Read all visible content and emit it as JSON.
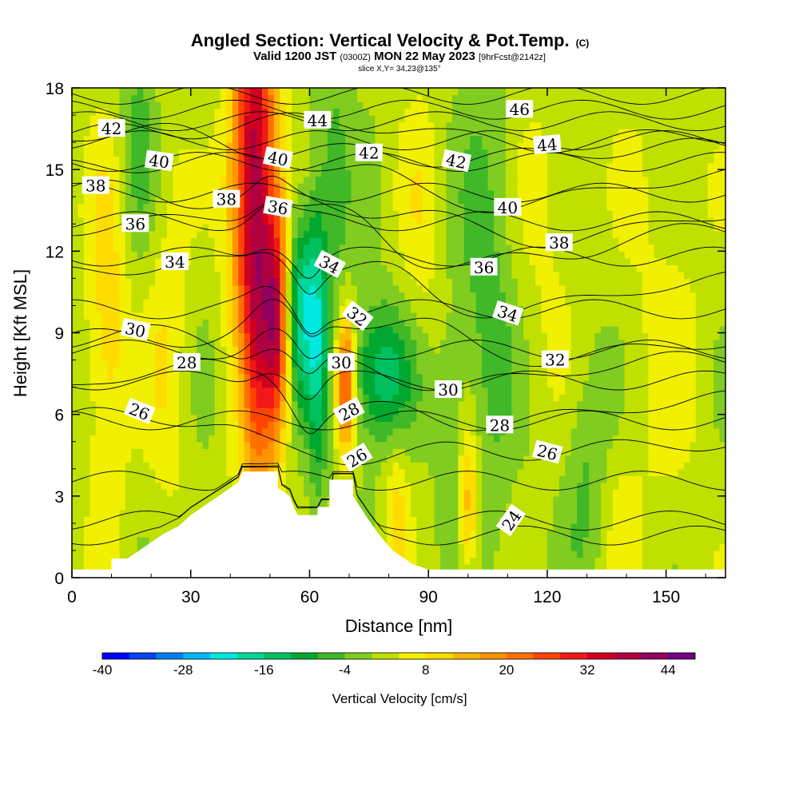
{
  "chart_data": {
    "type": "heatmap",
    "title": "Angled Section: Vertical Velocity & Pot.Temp.",
    "title_mark": "(C)",
    "subtitle_parts": [
      "Valid 1200 JST ",
      "(0300Z)",
      " MON 22 May 2023 ",
      "[9hrFcst@2142z]"
    ],
    "slice_text": "slice X,Y= 34,23@135°",
    "xlabel": "Distance [nm]",
    "ylabel": "Height [Kft MSL]",
    "xlim": [
      0,
      165
    ],
    "ylim": [
      0,
      18
    ],
    "xticks": [
      "0",
      "30",
      "60",
      "90",
      "120",
      "150"
    ],
    "yticks": [
      "0",
      "3",
      "6",
      "9",
      "12",
      "15",
      "18"
    ],
    "colorbar": {
      "label": "Vertical Velocity [cm/s]",
      "range": [
        -40,
        48
      ],
      "tick_labels": [
        "-40",
        "-28",
        "-16",
        "-4",
        "8",
        "20",
        "32",
        "44"
      ],
      "colors": [
        "#0000ff",
        "#0044f0",
        "#0080f0",
        "#00b8f8",
        "#00e8e0",
        "#00d898",
        "#00c060",
        "#00a830",
        "#40b828",
        "#80cc20",
        "#c0e000",
        "#f0f000",
        "#ffdc00",
        "#ffb800",
        "#ff9400",
        "#ff7000",
        "#ff4400",
        "#f01818",
        "#d00020",
        "#b00040",
        "#900060",
        "#700080"
      ]
    },
    "terrain_kft": [
      [
        0,
        0.3
      ],
      [
        10,
        0.3
      ],
      [
        10,
        0.7
      ],
      [
        14,
        0.7
      ],
      [
        17,
        1.0
      ],
      [
        20,
        1.3
      ],
      [
        23,
        1.6
      ],
      [
        27,
        1.9
      ],
      [
        30,
        2.3
      ],
      [
        33,
        2.6
      ],
      [
        36,
        2.9
      ],
      [
        39,
        3.2
      ],
      [
        42,
        3.5
      ],
      [
        43,
        3.9
      ],
      [
        52,
        3.9
      ],
      [
        52,
        3.3
      ],
      [
        55,
        3.0
      ],
      [
        56,
        2.6
      ],
      [
        57,
        2.3
      ],
      [
        62,
        2.3
      ],
      [
        62,
        2.6
      ],
      [
        65,
        2.6
      ],
      [
        65,
        3.6
      ],
      [
        71,
        3.6
      ],
      [
        71,
        3.0
      ],
      [
        75,
        2.1
      ],
      [
        78,
        1.5
      ],
      [
        81,
        1.0
      ],
      [
        84,
        0.7
      ],
      [
        86,
        0.5
      ],
      [
        90,
        0.3
      ],
      [
        165,
        0.3
      ]
    ],
    "contour_labels": [
      {
        "text": "42",
        "x": 10,
        "y": 16.5,
        "angle": 0
      },
      {
        "text": "44",
        "x": 62,
        "y": 16.8,
        "angle": 0
      },
      {
        "text": "46",
        "x": 113,
        "y": 17.2,
        "angle": 0
      },
      {
        "text": "40",
        "x": 22,
        "y": 15.3,
        "angle": 8
      },
      {
        "text": "40",
        "x": 52,
        "y": 15.4,
        "angle": 12
      },
      {
        "text": "42",
        "x": 75,
        "y": 15.6,
        "angle": 0
      },
      {
        "text": "42",
        "x": 97,
        "y": 15.3,
        "angle": 12
      },
      {
        "text": "44",
        "x": 120,
        "y": 15.9,
        "angle": -5
      },
      {
        "text": "38",
        "x": 6,
        "y": 14.4,
        "angle": 0
      },
      {
        "text": "38",
        "x": 39,
        "y": 13.9,
        "angle": 0
      },
      {
        "text": "36",
        "x": 52,
        "y": 13.6,
        "angle": 10
      },
      {
        "text": "40",
        "x": 110,
        "y": 13.6,
        "angle": 0
      },
      {
        "text": "36",
        "x": 16,
        "y": 13.0,
        "angle": 0
      },
      {
        "text": "38",
        "x": 123,
        "y": 12.3,
        "angle": 0
      },
      {
        "text": "34",
        "x": 26,
        "y": 11.6,
        "angle": 0
      },
      {
        "text": "34",
        "x": 65,
        "y": 11.5,
        "angle": 28
      },
      {
        "text": "36",
        "x": 104,
        "y": 11.4,
        "angle": 0
      },
      {
        "text": "32",
        "x": 72,
        "y": 9.6,
        "angle": 38
      },
      {
        "text": "34",
        "x": 110,
        "y": 9.7,
        "angle": 18
      },
      {
        "text": "30",
        "x": 16,
        "y": 9.1,
        "angle": 12
      },
      {
        "text": "28",
        "x": 29,
        "y": 7.9,
        "angle": 0
      },
      {
        "text": "30",
        "x": 68,
        "y": 7.9,
        "angle": 0
      },
      {
        "text": "32",
        "x": 122,
        "y": 8.0,
        "angle": 0
      },
      {
        "text": "30",
        "x": 95,
        "y": 6.9,
        "angle": 0
      },
      {
        "text": "26",
        "x": 17,
        "y": 6.1,
        "angle": 22
      },
      {
        "text": "28",
        "x": 70,
        "y": 6.1,
        "angle": -28
      },
      {
        "text": "28",
        "x": 108,
        "y": 5.6,
        "angle": 0
      },
      {
        "text": "26",
        "x": 72,
        "y": 4.4,
        "angle": -32
      },
      {
        "text": "26",
        "x": 120,
        "y": 4.6,
        "angle": 15
      },
      {
        "text": "24",
        "x": 111,
        "y": 2.1,
        "angle": -55
      }
    ],
    "vv_features": [
      {
        "x": 46,
        "y": 13,
        "sx": 4,
        "sy": 7,
        "v": 42
      },
      {
        "x": 52,
        "y": 9.5,
        "sx": 2.2,
        "sy": 2.8,
        "v": 28
      },
      {
        "x": 69,
        "y": 7.2,
        "sx": 1.7,
        "sy": 1.8,
        "v": 30
      },
      {
        "x": 58,
        "y": 10,
        "sx": 3.5,
        "sy": 2.5,
        "v": -20
      },
      {
        "x": 78,
        "y": 7.5,
        "sx": 6,
        "sy": 1.8,
        "v": -16
      },
      {
        "x": 43,
        "y": 7.5,
        "sx": 2.5,
        "sy": 3.5,
        "v": -9
      },
      {
        "x": 62,
        "y": 8,
        "sx": 1.6,
        "sy": 4.5,
        "v": -10
      },
      {
        "x": 66,
        "y": 14,
        "sx": 3,
        "sy": 5,
        "v": -6
      },
      {
        "x": 17,
        "y": 16,
        "sx": 3.5,
        "sy": 3,
        "v": -7
      },
      {
        "x": 9,
        "y": 9,
        "sx": 4,
        "sy": 5,
        "v": 10
      },
      {
        "x": 24,
        "y": 9.5,
        "sx": 4,
        "sy": 6,
        "v": 6
      },
      {
        "x": 100,
        "y": 2.8,
        "sx": 2,
        "sy": 2,
        "v": 16
      },
      {
        "x": 96,
        "y": 5,
        "sx": 3,
        "sy": 3,
        "v": -5
      },
      {
        "x": 105,
        "y": 10,
        "sx": 5,
        "sy": 6,
        "v": -7
      },
      {
        "x": 88,
        "y": 13,
        "sx": 4,
        "sy": 4,
        "v": 5
      },
      {
        "x": 120,
        "y": 13,
        "sx": 6,
        "sy": 5,
        "v": 4
      },
      {
        "x": 130,
        "y": 4,
        "sx": 4,
        "sy": 3,
        "v": -6
      },
      {
        "x": 150,
        "y": 10,
        "sx": 8,
        "sy": 8,
        "v": 4
      },
      {
        "x": 138,
        "y": 2.5,
        "sx": 4,
        "sy": 2,
        "v": 3
      },
      {
        "x": 82,
        "y": 2.2,
        "sx": 2.2,
        "sy": 2,
        "v": 9
      }
    ],
    "vv_background": 1
  }
}
